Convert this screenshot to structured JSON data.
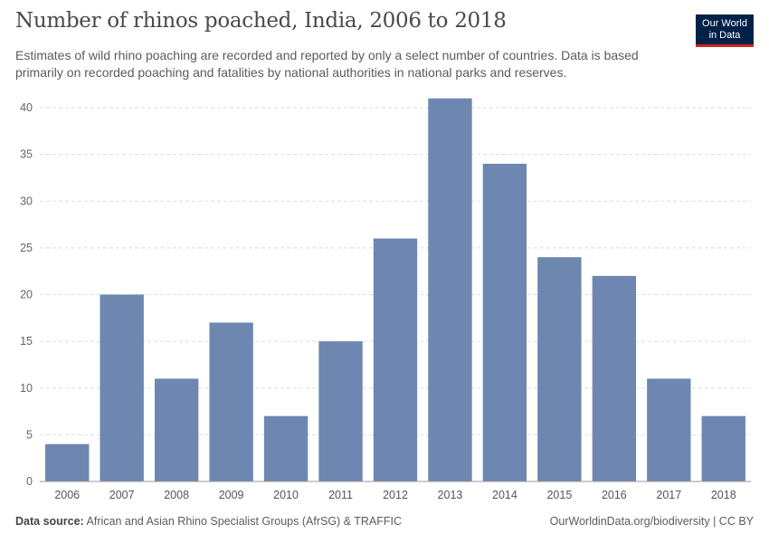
{
  "header": {
    "title": "Number of rhinos poached, India, 2006 to 2018",
    "subtitle": "Estimates of wild rhino poaching are recorded and reported by only a select number of countries. Data is based primarily on recorded poaching and fatalities by national authorities in national parks and reserves."
  },
  "logo": {
    "line1": "Our World",
    "line2": "in Data"
  },
  "footer": {
    "source_label": "Data source:",
    "source_text": "African and Asian Rhino Specialist Groups (AfrSG) & TRAFFIC",
    "credit": "OurWorldinData.org/biodiversity | CC BY"
  },
  "colors": {
    "bar": "#6d87b1",
    "grid": "#dddddd",
    "axis": "#999999"
  },
  "chart_data": {
    "type": "bar",
    "title": "Number of rhinos poached, India, 2006 to 2018",
    "xlabel": "",
    "ylabel": "",
    "categories": [
      "2006",
      "2007",
      "2008",
      "2009",
      "2010",
      "2011",
      "2012",
      "2013",
      "2014",
      "2015",
      "2016",
      "2017",
      "2018"
    ],
    "values": [
      4,
      20,
      11,
      17,
      7,
      15,
      26,
      41,
      34,
      24,
      22,
      11,
      7
    ],
    "ylim": [
      0,
      40
    ],
    "yticks": [
      0,
      5,
      10,
      15,
      20,
      25,
      30,
      35,
      40
    ],
    "grid": true
  }
}
